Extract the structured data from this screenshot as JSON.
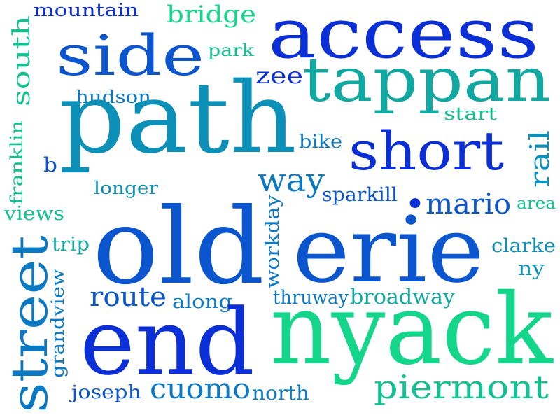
{
  "colors": {
    "c1": "#0a2fd6",
    "c2": "#0b55cf",
    "c3": "#0b78c4",
    "c4": "#0c90b8",
    "c5": "#10a8a0",
    "c6": "#12c090",
    "c7": "#14d68a"
  },
  "words": {
    "mountain": "mountain",
    "south": "south",
    "bridge": "bridge",
    "access": "access",
    "side": "side",
    "park": "park",
    "zee": "zee",
    "tappan": "tappan",
    "hudson": "hudson",
    "start": "start",
    "path": "path",
    "franklin": "franklin",
    "bike": "bike",
    "short": "short",
    "b": "b",
    "rail": "rail",
    "way": "way",
    "longer": "longer",
    "sparkill": "sparkill",
    "dot": "•",
    "mario": "mario",
    "area": "area",
    "views": "views",
    "workday": "workday",
    "old": "old",
    "erie": "erie",
    "street": "street",
    "trip": "trip",
    "clarke": "clarke",
    "ny": "ny",
    "grandview": "grandview",
    "route": "route",
    "along": "along",
    "thruway": "thruway",
    "broadway": "broadway",
    "end": "end",
    "nyack": "nyack",
    "piermont": "piermont",
    "joseph": "joseph",
    "cuomo": "cuomo",
    "north": "north"
  }
}
